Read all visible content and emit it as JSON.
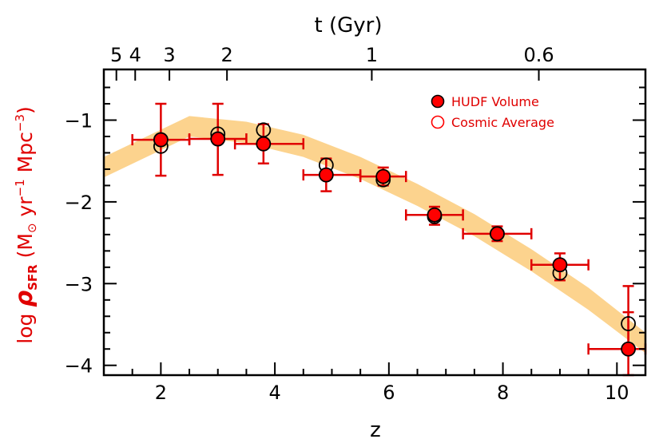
{
  "chart_data": {
    "type": "scatter",
    "xlabel": "z",
    "top_xlabel": "t (Gyr)",
    "ylabel": {
      "prefix": "log ",
      "rho": "ρ",
      "sub": "SFR",
      "unit_open": " (M",
      "sun": "⊙",
      "unit_yr": " yr",
      "exp1": "−1",
      "unit_mpc": " Mpc",
      "exp2": "−3",
      "unit_close": ")"
    },
    "xlim": [
      1.0,
      10.5
    ],
    "ylim": [
      -4.12,
      -0.38
    ],
    "x_ticks": [
      2,
      4,
      6,
      8,
      10
    ],
    "y_ticks": [
      -1,
      -2,
      -3,
      -4
    ],
    "y_tick_labels": [
      "−1",
      "−2",
      "−3",
      "−4"
    ],
    "top_ticks": [
      {
        "label": "5",
        "z": 1.22
      },
      {
        "label": "4",
        "z": 1.55
      },
      {
        "label": "3",
        "z": 2.15
      },
      {
        "label": "2",
        "z": 3.16
      },
      {
        "label": "1",
        "z": 5.7
      },
      {
        "label": "0.6",
        "z": 8.63
      }
    ],
    "band": {
      "z": [
        1.0,
        2.5,
        3.5,
        4.5,
        5.5,
        6.5,
        7.5,
        8.5,
        9.5,
        10.5
      ],
      "upper": [
        -1.45,
        -0.95,
        -1.02,
        -1.18,
        -1.45,
        -1.78,
        -2.15,
        -2.58,
        -3.05,
        -3.6
      ],
      "lower": [
        -1.7,
        -1.2,
        -1.28,
        -1.45,
        -1.72,
        -2.05,
        -2.42,
        -2.85,
        -3.32,
        -3.85
      ]
    },
    "series": [
      {
        "name": "HUDF Volume",
        "marker": "filled",
        "points": [
          {
            "z": 2.0,
            "y": -1.24,
            "zlo": 1.5,
            "zhi": 2.5,
            "ylo": -1.68,
            "yhi": -0.8
          },
          {
            "z": 3.0,
            "y": -1.23,
            "zlo": 2.5,
            "zhi": 3.5,
            "ylo": -1.67,
            "yhi": -0.8
          },
          {
            "z": 3.8,
            "y": -1.29,
            "zlo": 3.3,
            "zhi": 4.5,
            "ylo": -1.53,
            "yhi": -1.05
          },
          {
            "z": 4.9,
            "y": -1.67,
            "zlo": 4.5,
            "zhi": 5.5,
            "ylo": -1.87,
            "yhi": -1.47
          },
          {
            "z": 5.9,
            "y": -1.69,
            "zlo": 5.5,
            "zhi": 6.3,
            "ylo": -1.8,
            "yhi": -1.58
          },
          {
            "z": 6.8,
            "y": -2.16,
            "zlo": 6.3,
            "zhi": 7.3,
            "ylo": -2.28,
            "yhi": -2.06
          },
          {
            "z": 7.9,
            "y": -2.39,
            "zlo": 7.3,
            "zhi": 8.5,
            "ylo": -2.48,
            "yhi": -2.3
          },
          {
            "z": 9.0,
            "y": -2.77,
            "zlo": 8.5,
            "zhi": 9.5,
            "ylo": -2.96,
            "yhi": -2.63
          },
          {
            "z": 10.2,
            "y": -3.8,
            "zlo": 9.5,
            "zhi": 10.5,
            "ylo": -4.12,
            "yhi": -3.03
          }
        ]
      },
      {
        "name": "Cosmic Average",
        "marker": "open",
        "points": [
          {
            "z": 2.0,
            "y": -1.32
          },
          {
            "z": 3.0,
            "y": -1.17
          },
          {
            "z": 3.8,
            "y": -1.12
          },
          {
            "z": 4.9,
            "y": -1.55
          },
          {
            "z": 5.9,
            "y": -1.73
          },
          {
            "z": 6.8,
            "y": -2.18
          },
          {
            "z": 7.9,
            "y": -2.39
          },
          {
            "z": 9.0,
            "y": -2.87
          },
          {
            "z": 10.2,
            "y": -3.49,
            "ylo": -3.75,
            "yhi": -3.35
          }
        ]
      }
    ],
    "legend": {
      "placement": "top-right",
      "filled_label": "HUDF Volume",
      "open_label": "Cosmic Average"
    },
    "colors": {
      "marker": "#ff0000",
      "errorbar": "#e00000",
      "band": "#fcd38e",
      "ylabel": "#e00000"
    }
  }
}
